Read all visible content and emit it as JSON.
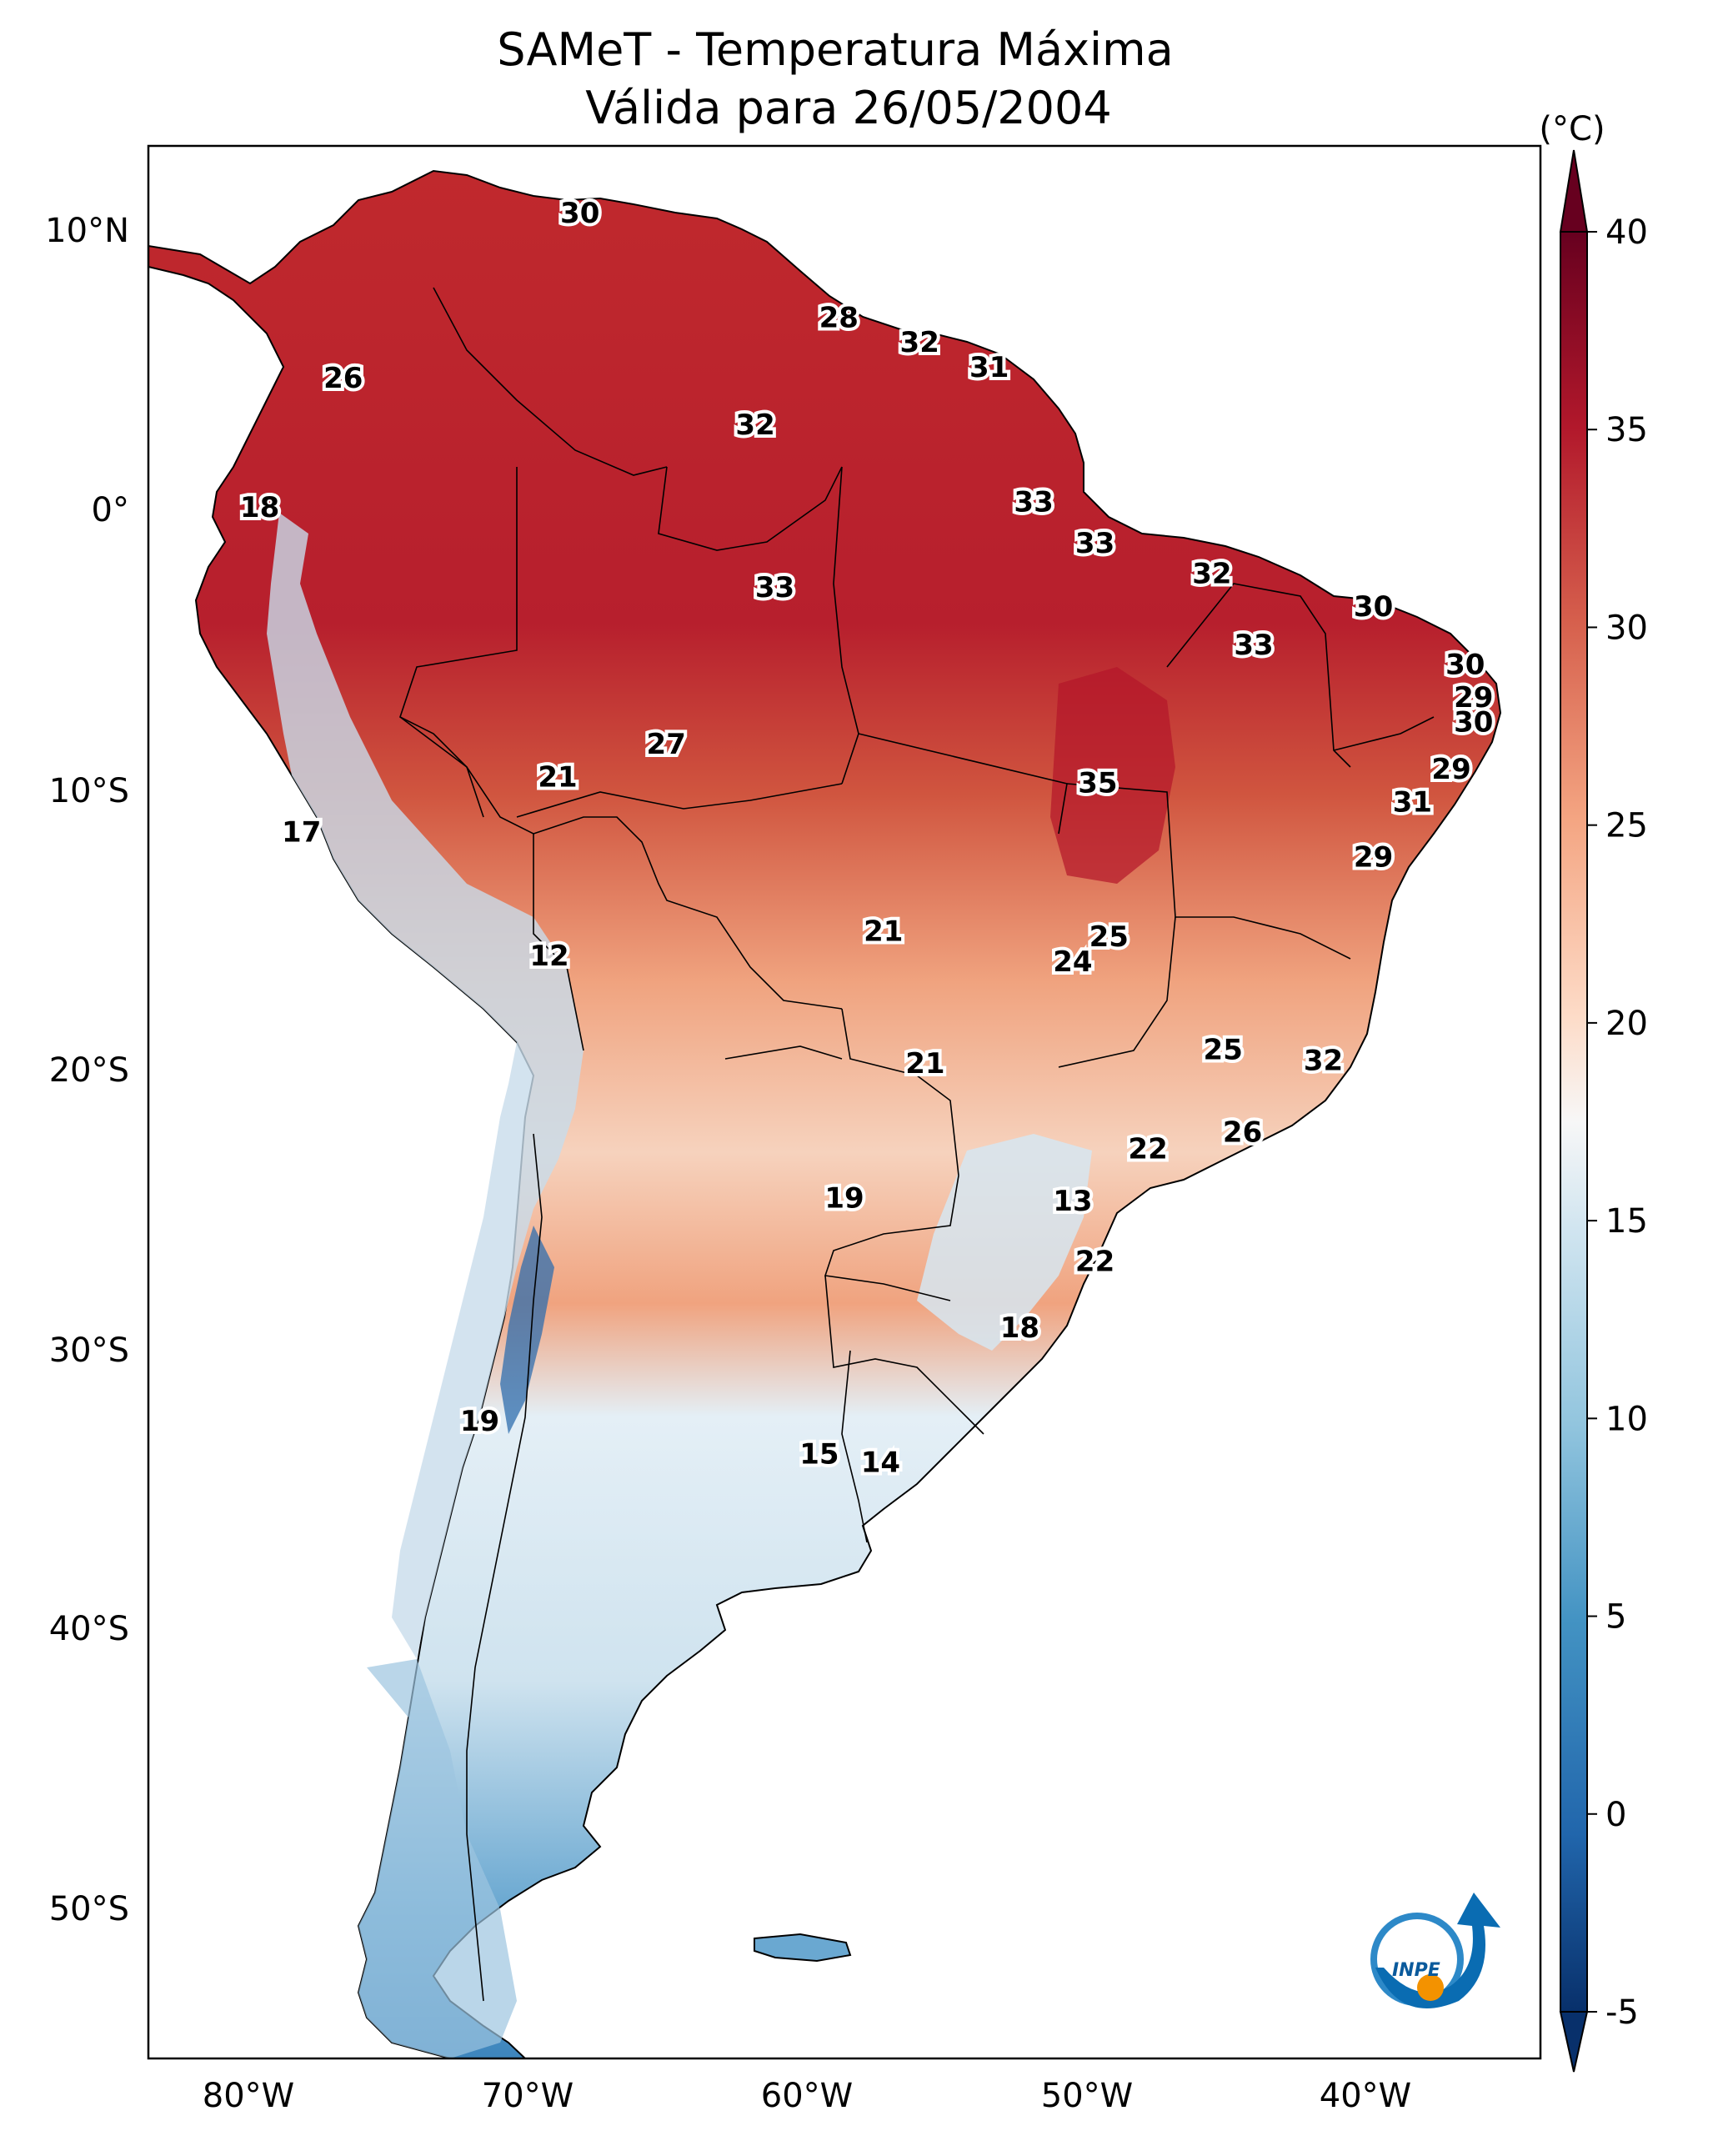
{
  "title": {
    "line1": "SAMeT - Temperatura Máxima",
    "line2": "Válida para 26/05/2004"
  },
  "map": {
    "lat_labels": [
      "10°N",
      "0°",
      "10°S",
      "20°S",
      "30°S",
      "40°S",
      "50°S"
    ],
    "lon_labels": [
      "80°W",
      "70°W",
      "60°W",
      "50°W",
      "40°W"
    ],
    "lat_values": [
      10,
      0,
      -10,
      -20,
      -30,
      -40,
      -50
    ],
    "lon_values": [
      -80,
      -70,
      -60,
      -50,
      -40
    ],
    "extent": {
      "lon": [
        -82.5,
        -32.5
      ],
      "lat": [
        -56.5,
        13
      ]
    }
  },
  "colorbar": {
    "unit": "(°C)",
    "ticks": [
      "40",
      "35",
      "30",
      "25",
      "20",
      "15",
      "10",
      "5",
      "0",
      "-5"
    ],
    "tick_values": [
      40,
      35,
      30,
      25,
      20,
      15,
      10,
      5,
      0,
      -5
    ],
    "range": [
      -5,
      40
    ],
    "colors": [
      "#08306b",
      "#2166ac",
      "#4393c3",
      "#92c5de",
      "#d1e5f0",
      "#f7f7f7",
      "#fddbc7",
      "#f4a582",
      "#d6604d",
      "#b2182b",
      "#67001f"
    ]
  },
  "station_values": [
    {
      "value": "30",
      "lon": -67,
      "lat": 10.5
    },
    {
      "value": "28",
      "lon": -57.7,
      "lat": 6.7
    },
    {
      "value": "32",
      "lon": -54.8,
      "lat": 5.8
    },
    {
      "value": "31",
      "lon": -52.3,
      "lat": 4.9
    },
    {
      "value": "26",
      "lon": -75.5,
      "lat": 4.5
    },
    {
      "value": "32",
      "lon": -60.7,
      "lat": 2.8
    },
    {
      "value": "18",
      "lon": -78.5,
      "lat": -0.2
    },
    {
      "value": "33",
      "lon": -50.7,
      "lat": 0.0
    },
    {
      "value": "33",
      "lon": -48.5,
      "lat": -1.5
    },
    {
      "value": "32",
      "lon": -44.3,
      "lat": -2.6
    },
    {
      "value": "33",
      "lon": -60.0,
      "lat": -3.1
    },
    {
      "value": "30",
      "lon": -38.5,
      "lat": -3.8
    },
    {
      "value": "33",
      "lon": -42.8,
      "lat": -5.2
    },
    {
      "value": "30",
      "lon": -35.2,
      "lat": -5.9
    },
    {
      "value": "29",
      "lon": -34.9,
      "lat": -7.1
    },
    {
      "value": "30",
      "lon": -34.9,
      "lat": -8.0
    },
    {
      "value": "27",
      "lon": -63.9,
      "lat": -8.8
    },
    {
      "value": "21",
      "lon": -67.8,
      "lat": -10.0
    },
    {
      "value": "35",
      "lon": -48.4,
      "lat": -10.2
    },
    {
      "value": "29",
      "lon": -35.7,
      "lat": -9.7
    },
    {
      "value": "31",
      "lon": -37.1,
      "lat": -10.9
    },
    {
      "value": "17",
      "lon": -77.0,
      "lat": -12.0
    },
    {
      "value": "29",
      "lon": -38.5,
      "lat": -12.9
    },
    {
      "value": "21",
      "lon": -56.1,
      "lat": -15.6
    },
    {
      "value": "25",
      "lon": -48.0,
      "lat": -15.8
    },
    {
      "value": "24",
      "lon": -49.3,
      "lat": -16.7
    },
    {
      "value": "12",
      "lon": -68.1,
      "lat": -16.5
    },
    {
      "value": "25",
      "lon": -43.9,
      "lat": -19.9
    },
    {
      "value": "32",
      "lon": -40.3,
      "lat": -20.3
    },
    {
      "value": "21",
      "lon": -54.6,
      "lat": -20.4
    },
    {
      "value": "26",
      "lon": -43.2,
      "lat": -22.9
    },
    {
      "value": "22",
      "lon": -46.6,
      "lat": -23.5
    },
    {
      "value": "13",
      "lon": -49.3,
      "lat": -25.4
    },
    {
      "value": "19",
      "lon": -57.5,
      "lat": -25.3
    },
    {
      "value": "22",
      "lon": -48.5,
      "lat": -27.6
    },
    {
      "value": "18",
      "lon": -51.2,
      "lat": -30.0
    },
    {
      "value": "19",
      "lon": -70.6,
      "lat": -33.4
    },
    {
      "value": "15",
      "lon": -58.4,
      "lat": -34.6
    },
    {
      "value": "14",
      "lon": -56.2,
      "lat": -34.9
    }
  ],
  "logo": {
    "text": "INPE"
  }
}
